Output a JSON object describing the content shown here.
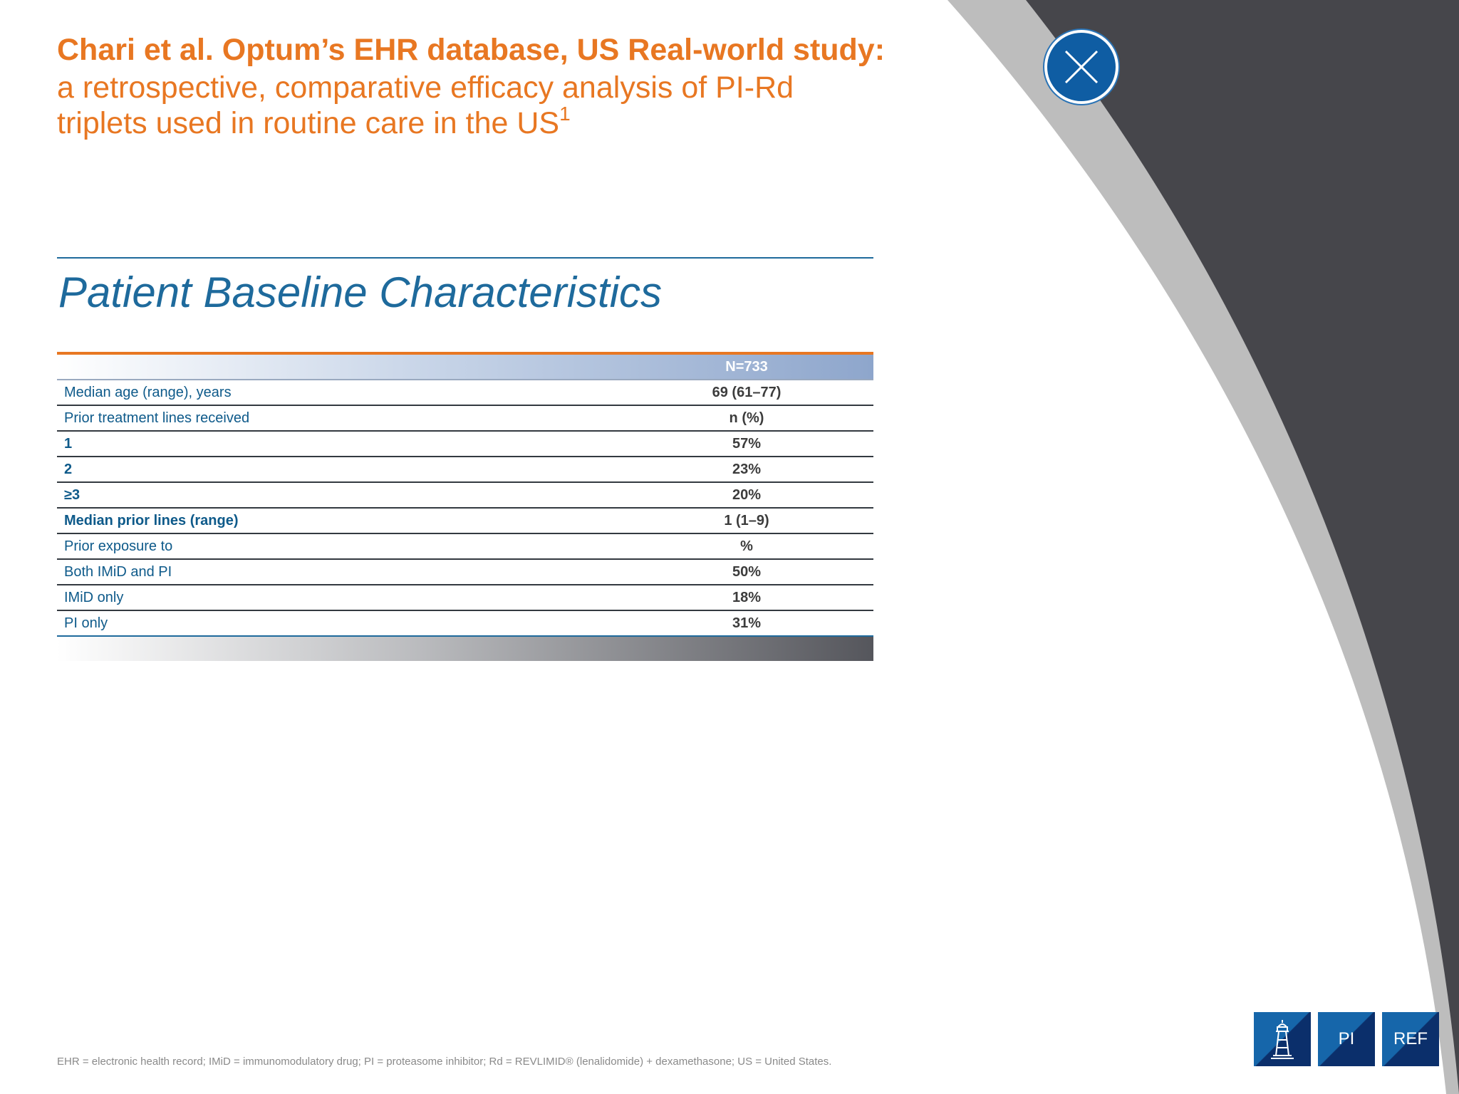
{
  "title": {
    "bold": "Chari et al. Optum’s EHR database, US Real-world study:",
    "line1": "a retrospective, comparative efficacy analysis of PI-Rd",
    "line2": "triplets used in routine care in the US",
    "ref": "1"
  },
  "section_title": "Patient Baseline Characteristics",
  "table": {
    "header": "N=733",
    "rows": [
      {
        "label": "Median age (range), years",
        "value": "69 (61–77)"
      },
      {
        "label": "Prior treatment lines received",
        "value": "n (%)"
      },
      {
        "label": "1",
        "value": "57%"
      },
      {
        "label": "2",
        "value": "23%"
      },
      {
        "label": "≥3",
        "value": "20%"
      },
      {
        "label": "Median prior lines (range)",
        "value": "1 (1–9)"
      },
      {
        "label": "Prior exposure to",
        "value": "%"
      },
      {
        "label": "Both IMiD and PI",
        "value": "50%"
      },
      {
        "label": "IMiD only",
        "value": "18%"
      },
      {
        "label": "PI only",
        "value": "31%"
      }
    ]
  },
  "footnote": "EHR = electronic health record; IMiD = immunomodulatory drug; PI = proteasome inhibitor; Rd = REVLIMID® (lenalidomide) + dexamethasone; US = United States.",
  "nav": {
    "home_icon": "lighthouse-icon",
    "pi_label": "PI",
    "ref_label": "REF"
  },
  "close_icon": "close-icon",
  "colors": {
    "accent_orange": "#E87722",
    "brand_blue": "#1E6A9C",
    "button_blue": "#0F5DA3",
    "dark_gray": "#46464b",
    "arc_gray": "#bcbcbc"
  }
}
